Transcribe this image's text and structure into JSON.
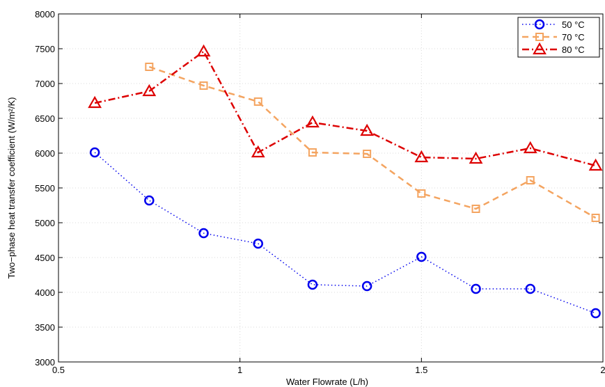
{
  "chart_data": {
    "type": "line",
    "xlabel": "Water Flowrate (L/h)",
    "ylabel": "Two−phase heat transfer coefficient (W/m²/K)",
    "xlim": [
      0.5,
      2
    ],
    "ylim": [
      3000,
      8000
    ],
    "x_ticks": [
      0.5,
      1,
      1.5,
      2
    ],
    "x_tick_labels": [
      "0.5",
      "1",
      "1.5",
      "2"
    ],
    "y_ticks": [
      3000,
      3500,
      4000,
      4500,
      5000,
      5500,
      6000,
      6500,
      7000,
      7500,
      8000
    ],
    "y_tick_labels": [
      "3000",
      "3500",
      "4000",
      "4500",
      "5000",
      "5500",
      "6000",
      "6500",
      "7000",
      "7500",
      "8000"
    ],
    "grid": true,
    "legend_position": "top-right",
    "series": [
      {
        "name": "50 °C",
        "color": "#0000ee",
        "line_style": "dotted",
        "marker": "circle",
        "x": [
          0.6,
          0.75,
          0.9,
          1.05,
          1.2,
          1.35,
          1.5,
          1.65,
          1.8,
          1.98
        ],
        "y": [
          6010,
          5320,
          4850,
          4700,
          4110,
          4090,
          4510,
          4050,
          4050,
          3700
        ]
      },
      {
        "name": "70 °C",
        "color": "#f4a460",
        "line_style": "dashed",
        "marker": "square",
        "x": [
          0.75,
          0.9,
          1.05,
          1.2,
          1.35,
          1.5,
          1.65,
          1.8,
          1.98
        ],
        "y": [
          7240,
          6970,
          6740,
          6010,
          5990,
          5420,
          5200,
          5610,
          5070
        ]
      },
      {
        "name": "80 °C",
        "color": "#dd0000",
        "line_style": "dashdot",
        "marker": "triangle",
        "x": [
          0.6,
          0.75,
          0.9,
          1.05,
          1.2,
          1.35,
          1.5,
          1.65,
          1.8,
          1.98
        ],
        "y": [
          6720,
          6890,
          7460,
          6010,
          6440,
          6320,
          5940,
          5920,
          6070,
          5820
        ]
      }
    ]
  }
}
